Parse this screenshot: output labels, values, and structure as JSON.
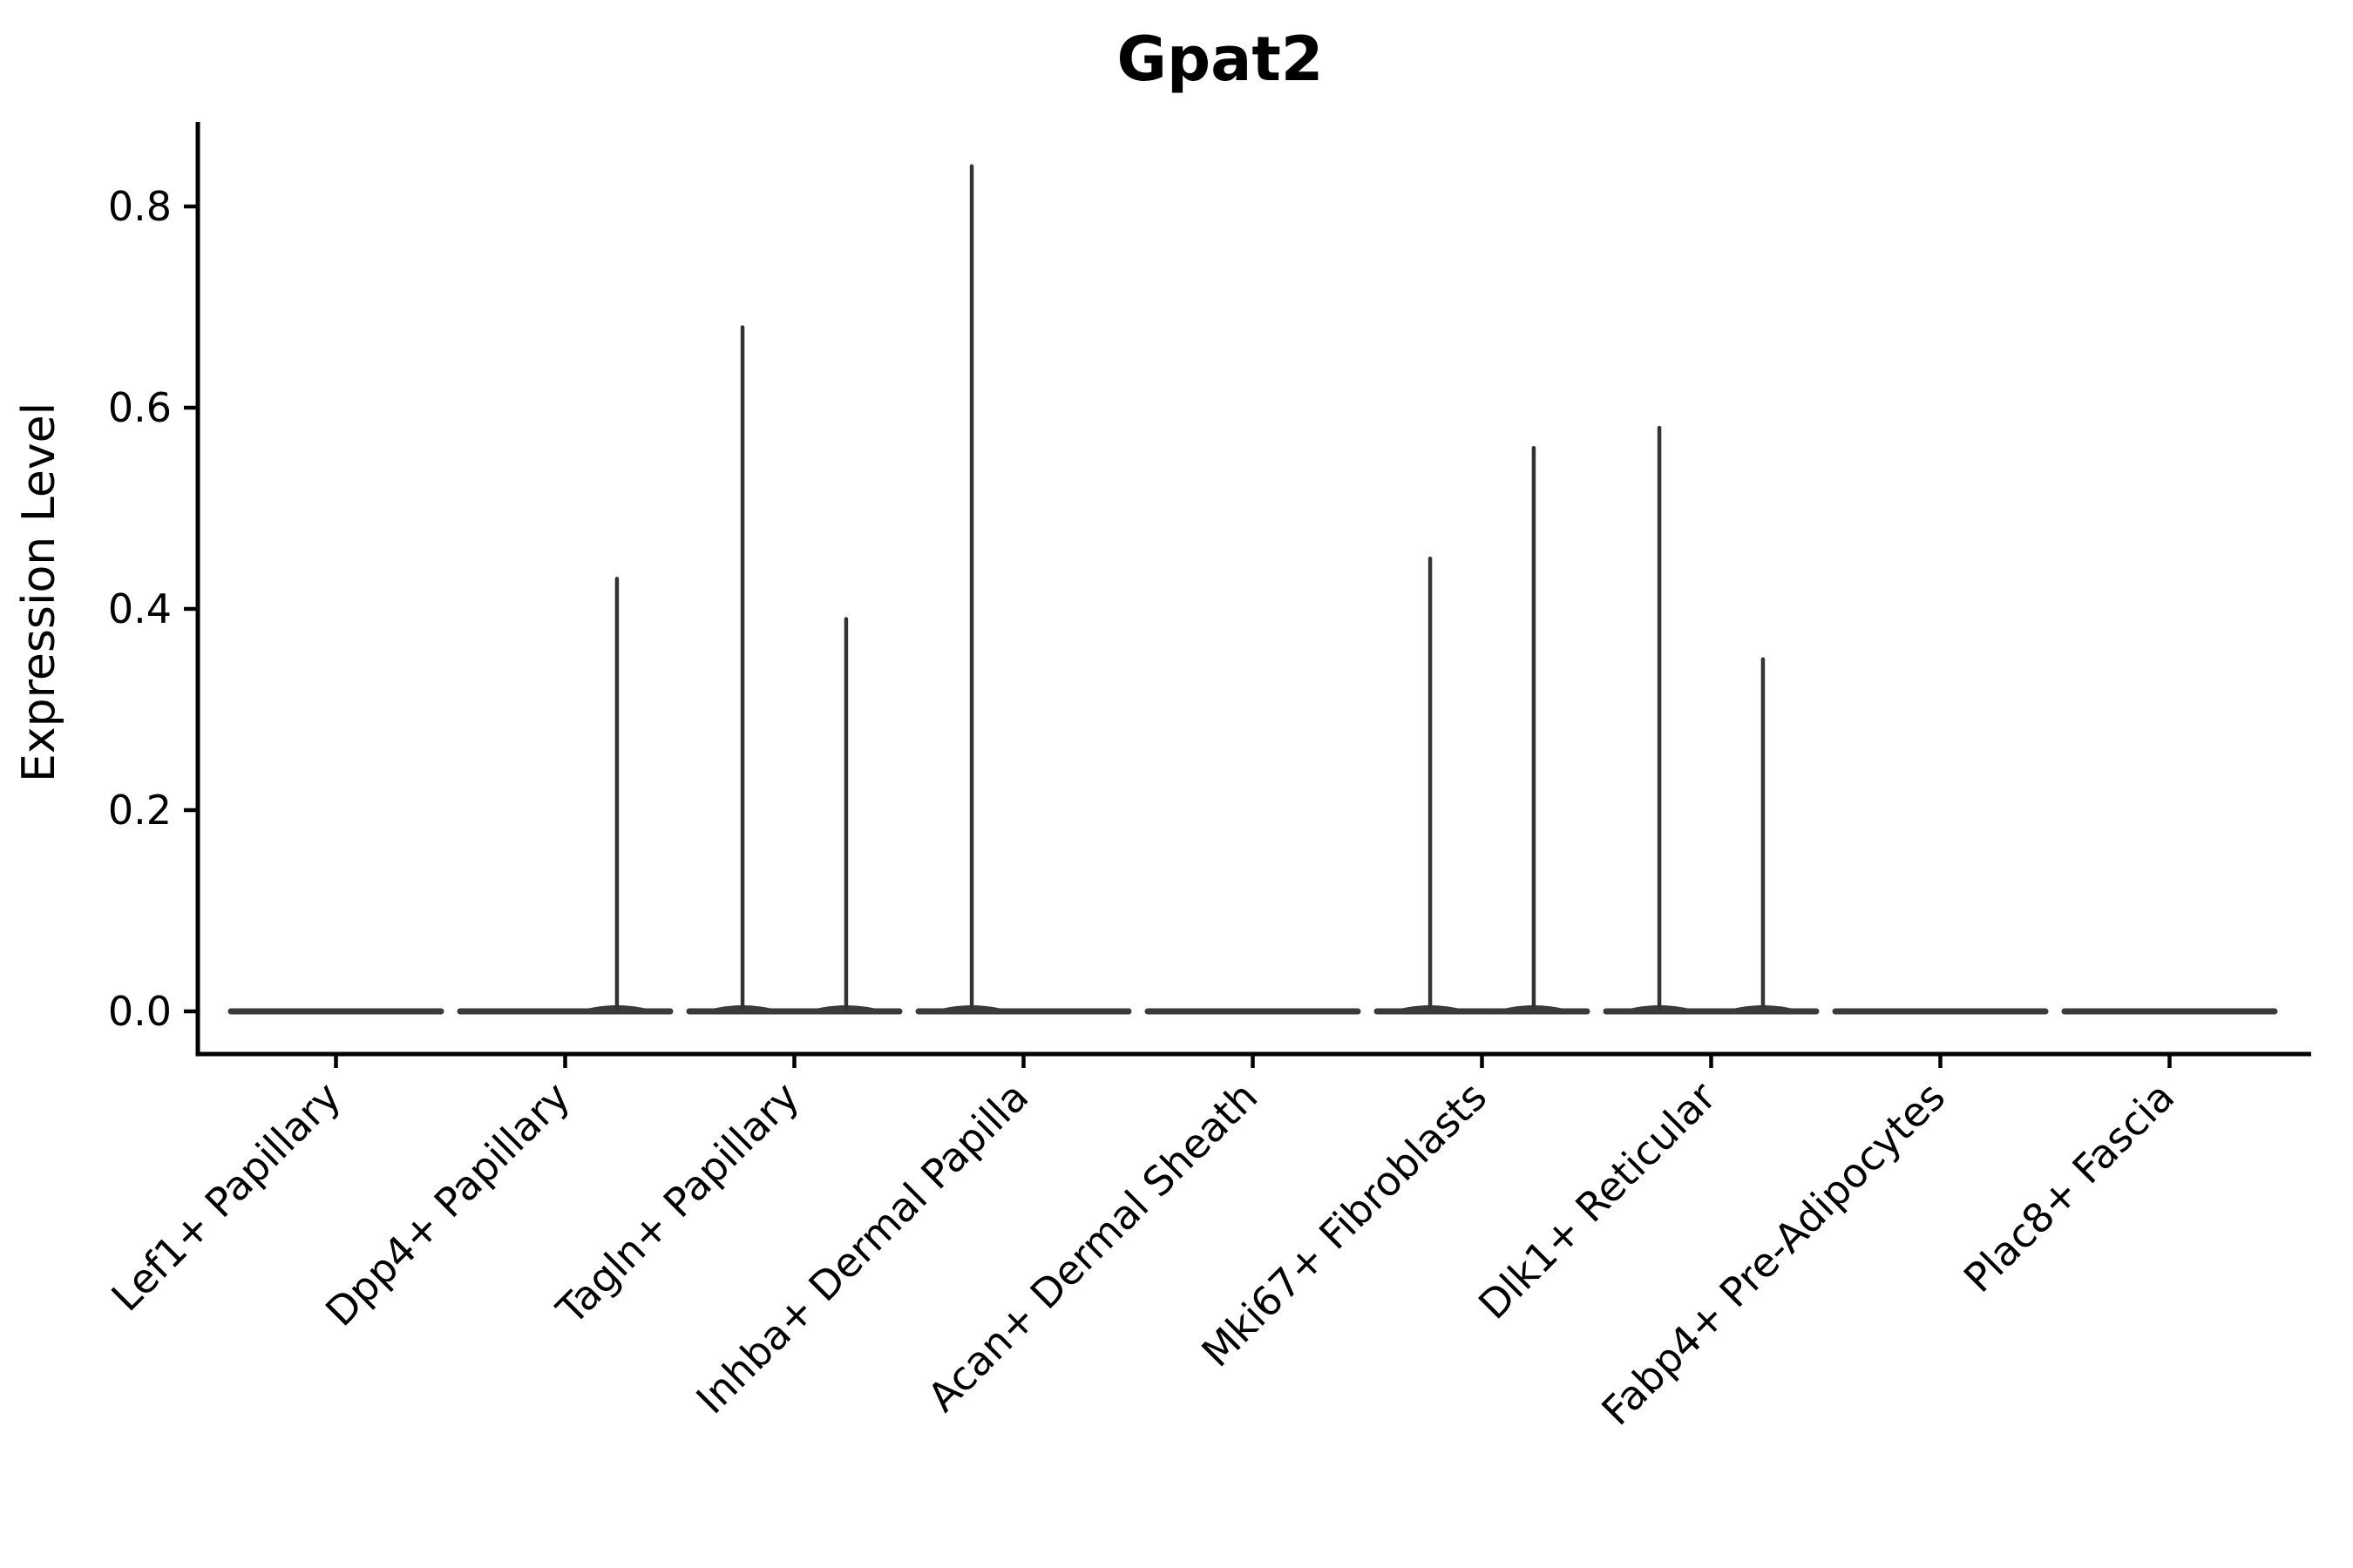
{
  "chart_data": {
    "type": "violin",
    "title": "Gpat2",
    "ylabel": "Expression Level",
    "xlabel": "",
    "ylim": [
      0,
      0.875
    ],
    "yticks": [
      0.0,
      0.2,
      0.4,
      0.6,
      0.8
    ],
    "ytick_label_format": "one_decimal",
    "grid": false,
    "legend_position": "none",
    "x_tick_label_rotation_deg": 45,
    "categories": [
      "Lef1+ Papillary",
      "Dpp4+ Papillary",
      "Tagln+ Papillary",
      "Inhba+ Dermal Papilla",
      "Acan+ Dermal Sheath",
      "Mki67+ Fibroblasts",
      "Dlk1+ Reticular",
      "Fabp4+ Pre-Adipocytes",
      "Plac8+ Fascia"
    ],
    "series": [
      {
        "name": "Lef1+ Papillary",
        "baseline_value": 0.0,
        "spikes": []
      },
      {
        "name": "Dpp4+ Papillary",
        "baseline_value": 0.0,
        "spikes": [
          {
            "side": "right",
            "offset_frac": 0.226,
            "value": 0.43
          }
        ]
      },
      {
        "name": "Tagln+ Papillary",
        "baseline_value": 0.0,
        "spikes": [
          {
            "side": "left",
            "offset_frac": -0.226,
            "value": 0.68
          },
          {
            "side": "right",
            "offset_frac": 0.226,
            "value": 0.39
          }
        ]
      },
      {
        "name": "Inhba+ Dermal Papilla",
        "baseline_value": 0.0,
        "spikes": [
          {
            "side": "left",
            "offset_frac": -0.226,
            "value": 0.84
          }
        ]
      },
      {
        "name": "Acan+ Dermal Sheath",
        "baseline_value": 0.0,
        "spikes": []
      },
      {
        "name": "Mki67+ Fibroblasts",
        "baseline_value": 0.0,
        "spikes": [
          {
            "side": "left",
            "offset_frac": -0.226,
            "value": 0.45
          },
          {
            "side": "right",
            "offset_frac": 0.226,
            "value": 0.56
          }
        ]
      },
      {
        "name": "Dlk1+ Reticular",
        "baseline_value": 0.0,
        "spikes": [
          {
            "side": "left",
            "offset_frac": -0.226,
            "value": 0.58
          },
          {
            "side": "right",
            "offset_frac": 0.226,
            "value": 0.35
          }
        ]
      },
      {
        "name": "Fabp4+ Pre-Adipocytes",
        "baseline_value": 0.0,
        "spikes": []
      },
      {
        "name": "Plac8+ Fascia",
        "baseline_value": 0.0,
        "spikes": []
      }
    ],
    "colors": {
      "violin_line": "#3a3a3a",
      "spike_line": "#333333",
      "axis": "#000000",
      "text": "#000000",
      "background": "#ffffff"
    }
  }
}
